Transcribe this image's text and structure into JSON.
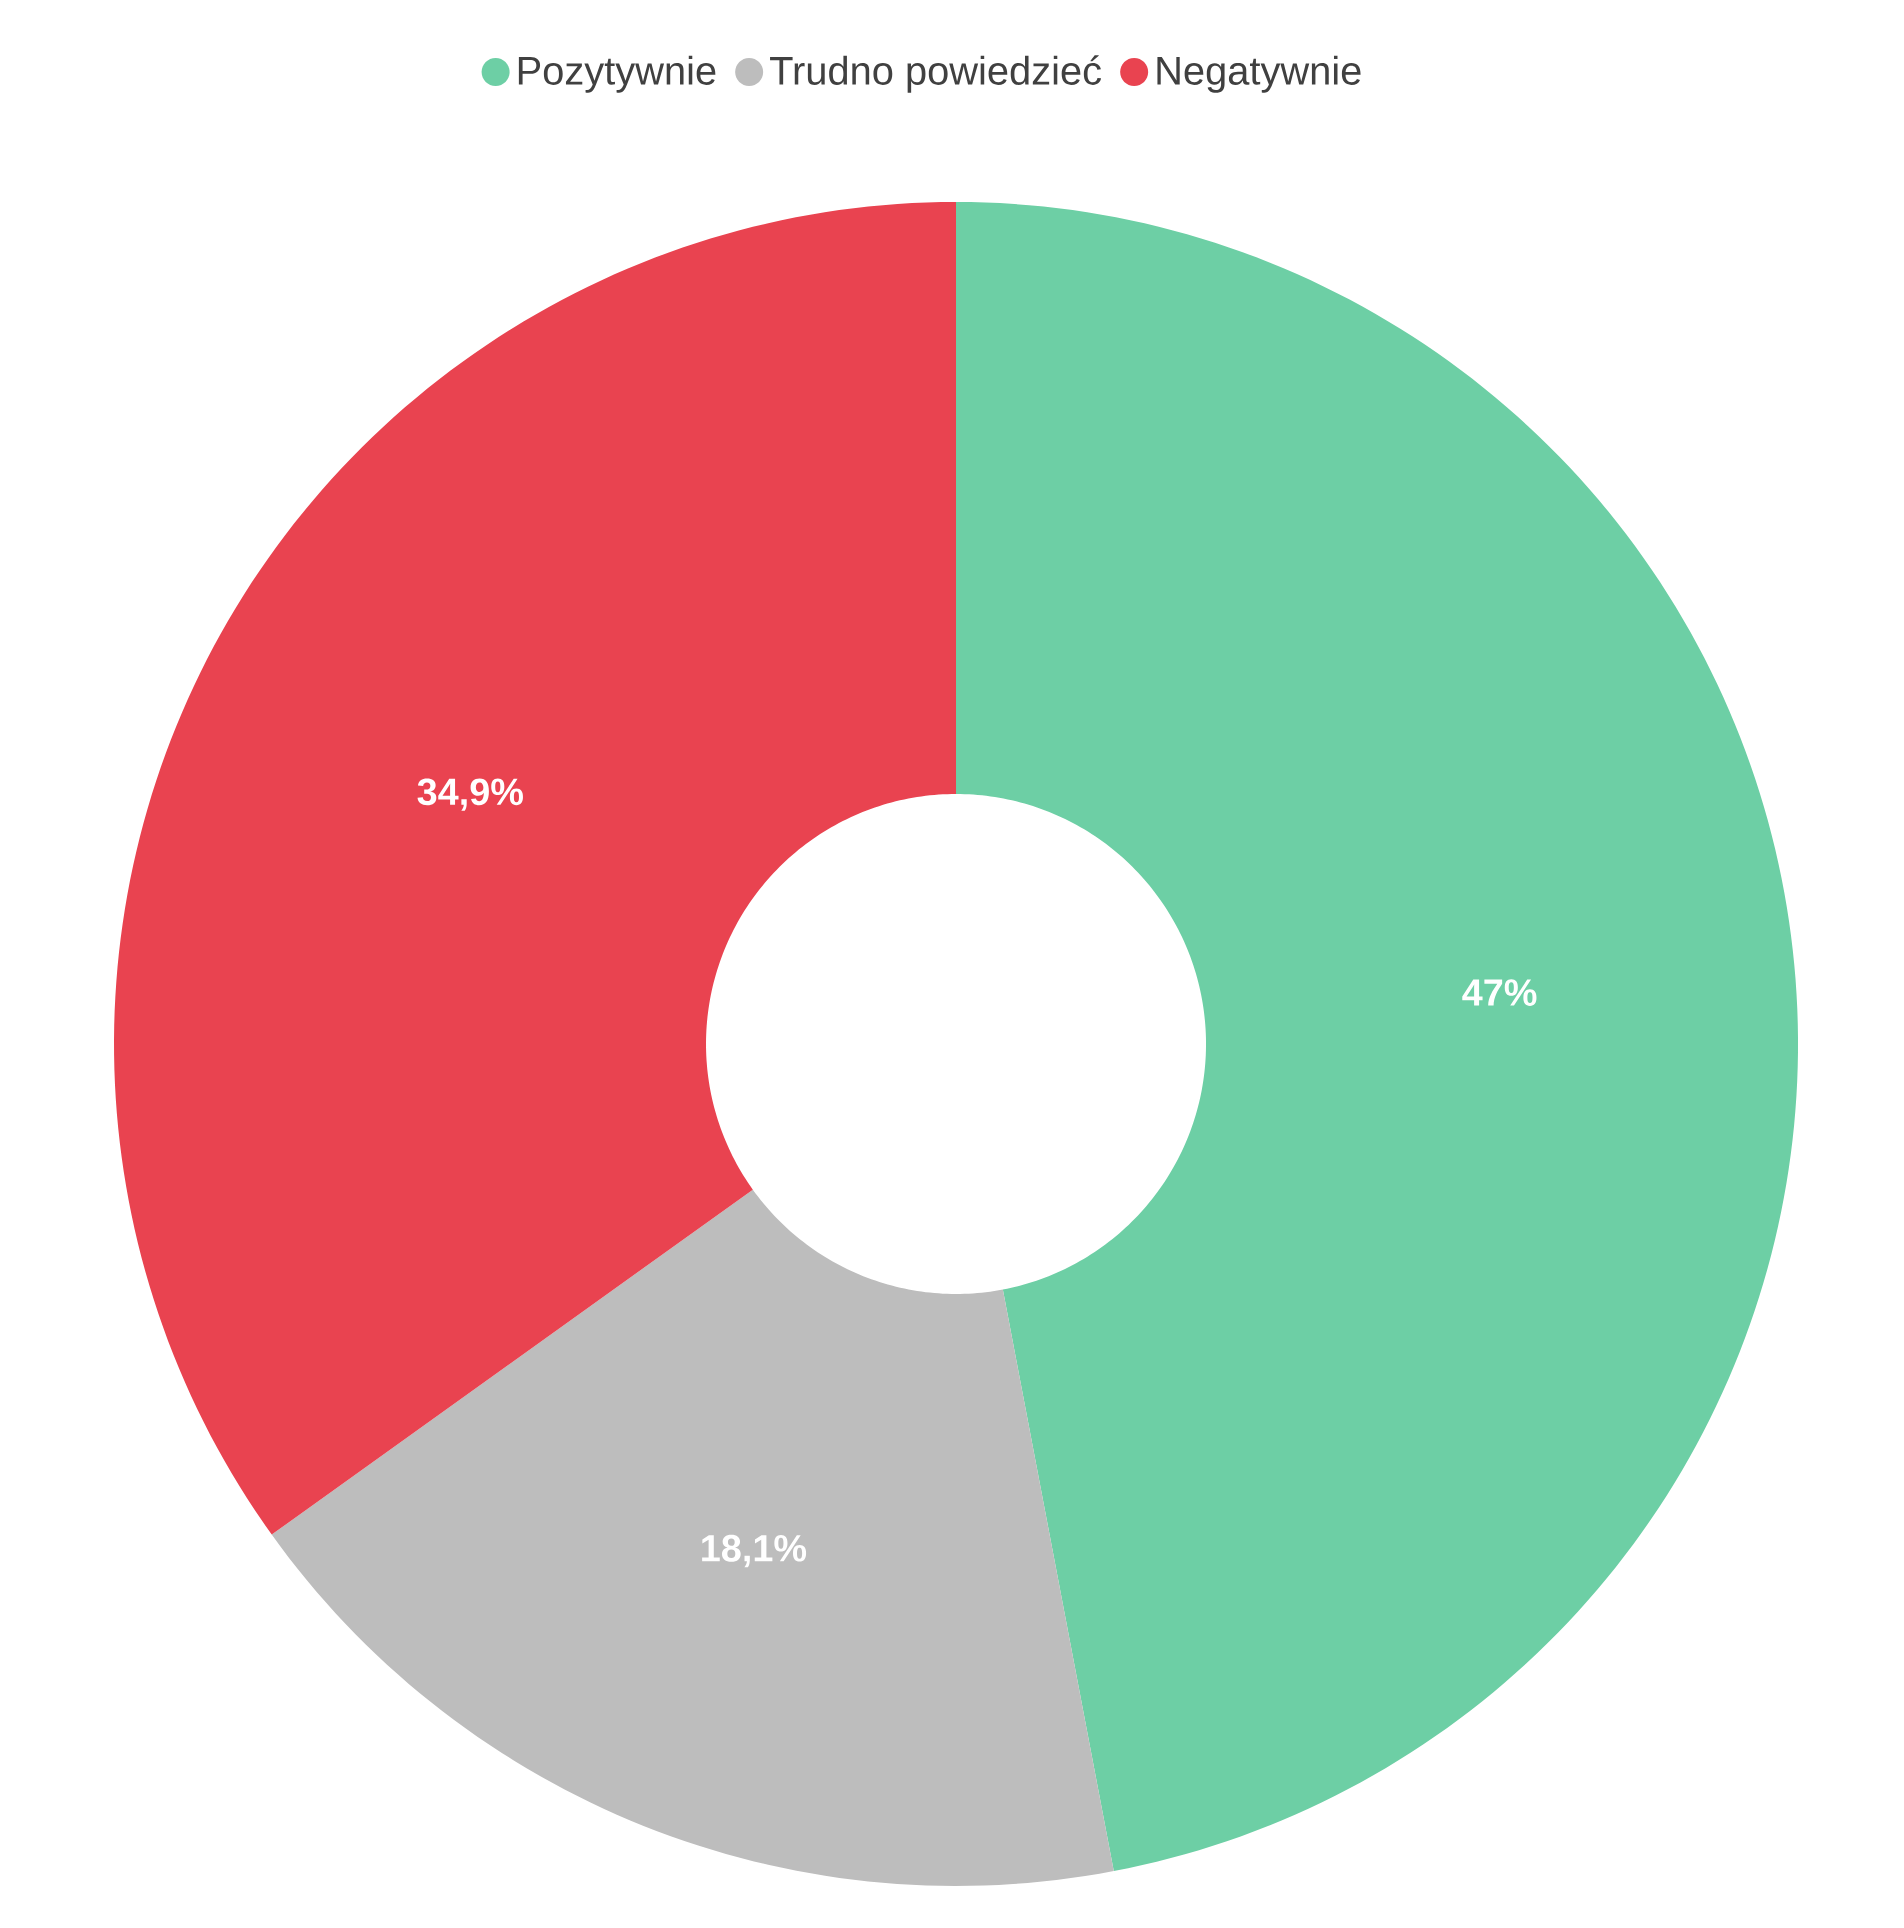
{
  "chart_data": {
    "type": "donut",
    "categories": [
      "Pozytywnie",
      "Trudno powiedzieć",
      "Negatywnie"
    ],
    "values": [
      47,
      18.1,
      34.9
    ],
    "colors": [
      "#6dcfa5",
      "#bdbdbd",
      "#e94350"
    ],
    "value_labels": [
      "47%",
      "18,1%",
      "34,9%"
    ],
    "legend": "top"
  }
}
